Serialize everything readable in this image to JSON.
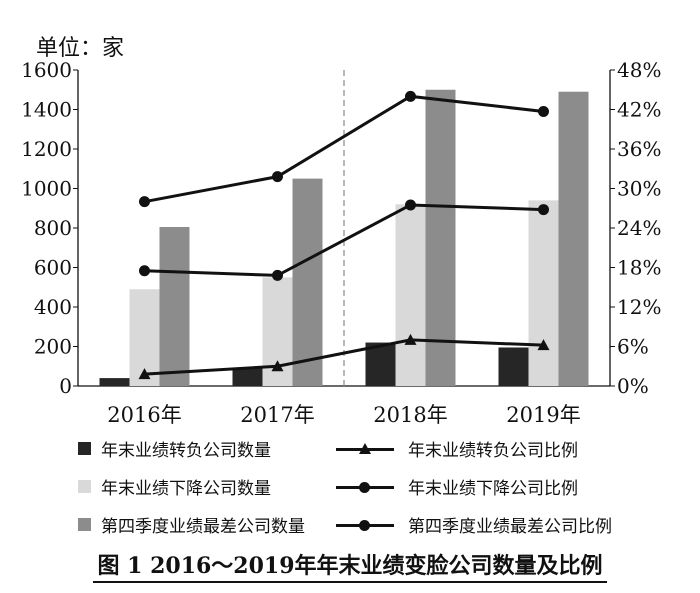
{
  "unit_label": "单位：家",
  "caption": "图 1  2016～2019年年末业绩变脸公司数量及比例",
  "legend": [
    {
      "label": "年末业绩转负公司数量",
      "kind": "bar",
      "color": "#262626"
    },
    {
      "label": "年末业绩转负公司比例",
      "kind": "line",
      "marker": "triangle"
    },
    {
      "label": "年末业绩下降公司数量",
      "kind": "bar",
      "color": "#d9d9d9"
    },
    {
      "label": "年末业绩下降公司比例",
      "kind": "line",
      "marker": "dot"
    },
    {
      "label": "第四季度业绩最差公司数量",
      "kind": "bar",
      "color": "#8c8c8c"
    },
    {
      "label": "第四季度业绩最差公司比例",
      "kind": "line",
      "marker": "dot"
    }
  ],
  "chart_data": {
    "type": "bar+line",
    "categories": [
      "2016年",
      "2017年",
      "2018年",
      "2019年"
    ],
    "y_left": {
      "min": 0,
      "max": 1600,
      "ticks": [
        "0",
        "200",
        "400",
        "600",
        "800",
        "1000",
        "1200",
        "1400",
        "1600"
      ]
    },
    "y_right": {
      "min": 0,
      "max": 0.48,
      "ticks": [
        "0%",
        "6%",
        "12%",
        "18%",
        "24%",
        "30%",
        "36%",
        "42%",
        "48%"
      ]
    },
    "bar_series": [
      {
        "name": "年末业绩转负公司数量",
        "color": "#262626",
        "values": [
          40,
          90,
          220,
          195
        ]
      },
      {
        "name": "年末业绩下降公司数量",
        "color": "#d9d9d9",
        "values": [
          490,
          550,
          920,
          940
        ]
      },
      {
        "name": "第四季度业绩最差公司数量",
        "color": "#8c8c8c",
        "values": [
          805,
          1050,
          1500,
          1490
        ]
      }
    ],
    "line_series": [
      {
        "name": "年末业绩转负公司比例",
        "marker": "triangle",
        "values": [
          0.018,
          0.03,
          0.07,
          0.062
        ]
      },
      {
        "name": "年末业绩下降公司比例",
        "marker": "dot",
        "values": [
          0.175,
          0.168,
          0.275,
          0.268
        ]
      },
      {
        "name": "第四季度业绩最差公司比例",
        "marker": "dot",
        "values": [
          0.28,
          0.318,
          0.44,
          0.417
        ]
      }
    ],
    "divider_after_category": 1,
    "grid": false
  }
}
